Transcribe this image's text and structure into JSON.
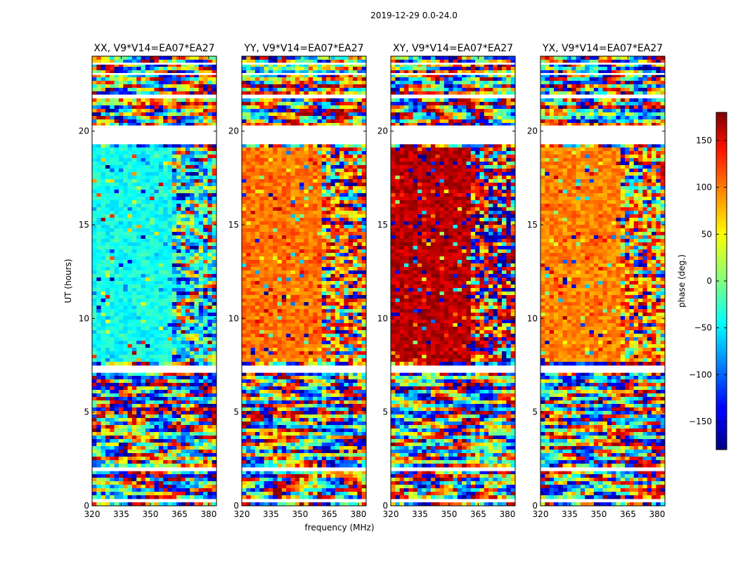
{
  "chart_data": {
    "type": "heatmap",
    "title": "2019-12-29 0.0-24.0",
    "xlabel": "frequency (MHz)",
    "ylabel": "UT (hours)",
    "xlim": [
      320,
      384
    ],
    "ylim": [
      0,
      24
    ],
    "x_ticks": [
      320,
      335,
      350,
      365,
      380
    ],
    "y_ticks": [
      0,
      5,
      10,
      15,
      20
    ],
    "colorbar": {
      "label": "phase (deg.)",
      "range": [
        -180,
        180
      ],
      "ticks": [
        -150,
        -100,
        -50,
        0,
        50,
        100,
        150
      ],
      "colormap": "jet"
    },
    "flagged_time_ranges_hours": [
      [
        0.2,
        0.35
      ],
      [
        1.85,
        2.0
      ],
      [
        7.1,
        7.45
      ],
      [
        19.3,
        20.3
      ],
      [
        21.8,
        21.95
      ],
      [
        23.0,
        23.1
      ],
      [
        23.55,
        23.65
      ]
    ],
    "panels": [
      {
        "title": "XX, V9*V14=EA07*EA27",
        "dominant_phase_deg": -40,
        "correlation": "XX"
      },
      {
        "title": "YY, V9*V14=EA07*EA27",
        "dominant_phase_deg": 95,
        "correlation": "YY"
      },
      {
        "title": "XY, V9*V14=EA07*EA27",
        "dominant_phase_deg": 160,
        "correlation": "XY"
      },
      {
        "title": "YX, V9*V14=EA07*EA27",
        "dominant_phase_deg": 90,
        "correlation": "YX"
      }
    ]
  }
}
